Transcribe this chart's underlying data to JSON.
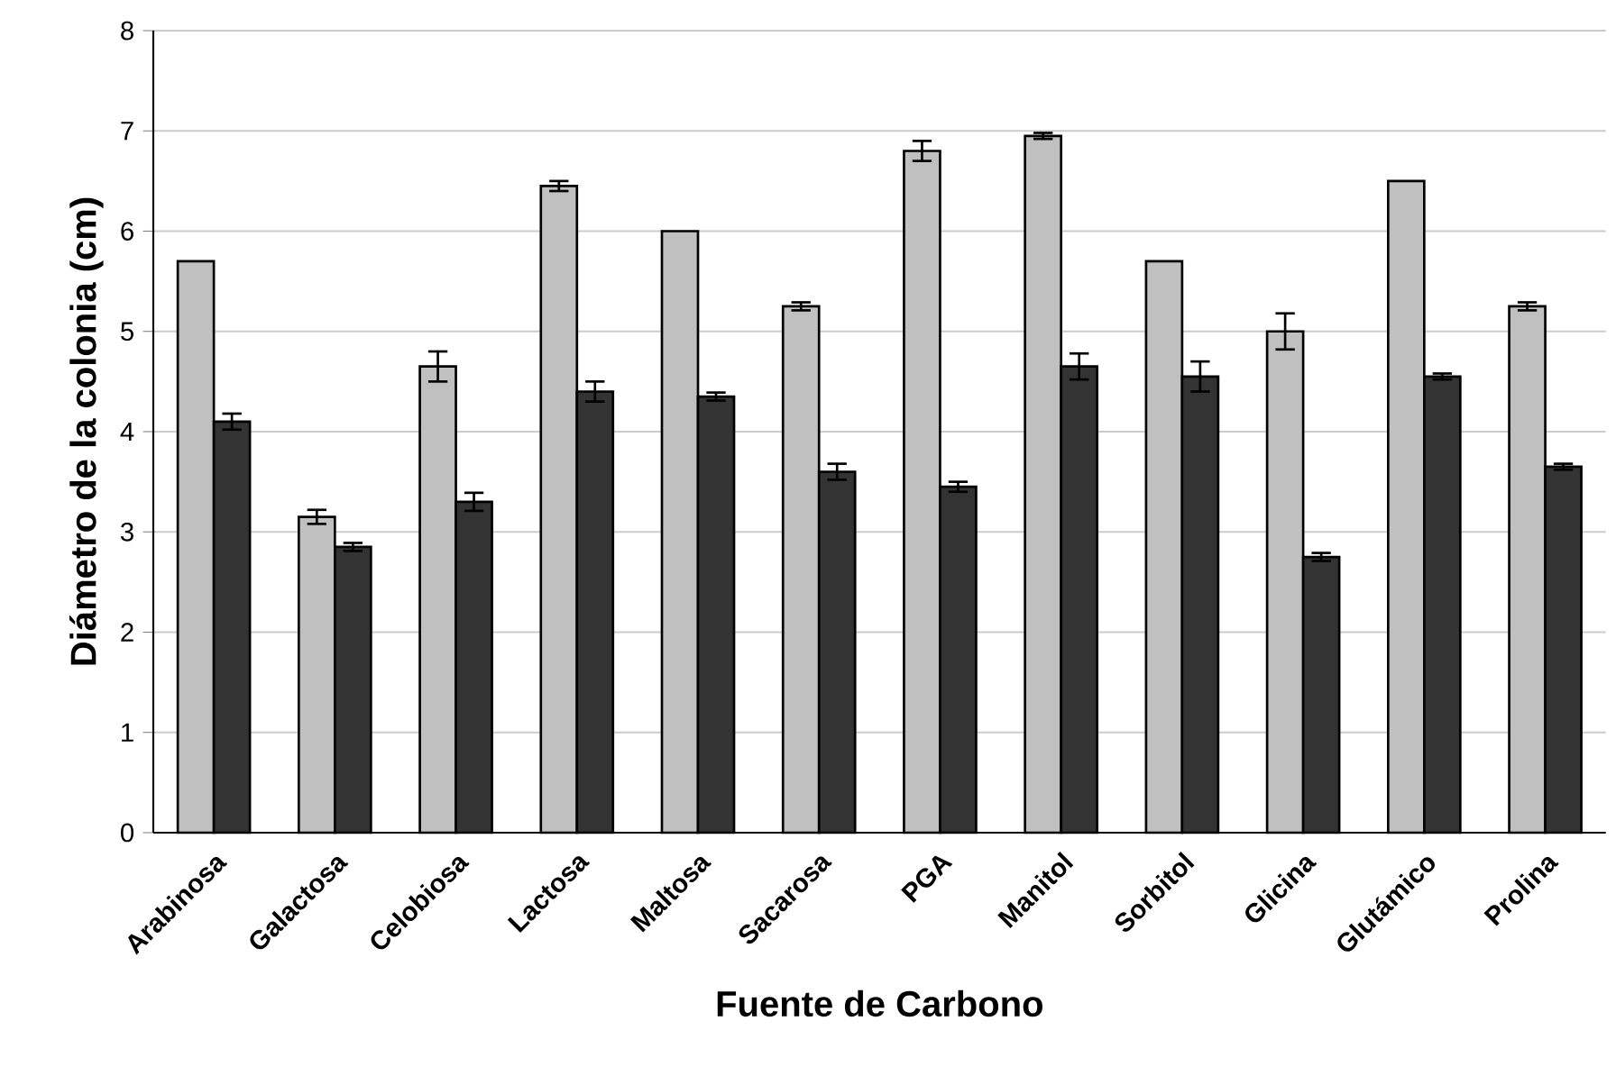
{
  "chart_data": {
    "type": "bar",
    "xlabel": "Fuente de Carbono",
    "ylabel": "Diámetro de la colonia (cm)",
    "categories": [
      "Arabinosa",
      "Galactosa",
      "Celobiosa",
      "Lactosa",
      "Maltosa",
      "Sacarosa",
      "PGA",
      "Manitol",
      "Sorbitol",
      "Glicina",
      "Glutámico",
      "Prolina"
    ],
    "series": [
      {
        "color": "#c0c0c0",
        "values": [
          5.7,
          3.15,
          4.65,
          6.45,
          6.0,
          5.25,
          6.8,
          6.95,
          5.7,
          5.0,
          6.5,
          5.25
        ],
        "errors": [
          null,
          0.07,
          0.15,
          0.05,
          null,
          0.04,
          0.1,
          0.03,
          null,
          0.18,
          null,
          0.04
        ]
      },
      {
        "color": "#333333",
        "values": [
          4.1,
          2.85,
          3.3,
          4.4,
          4.35,
          3.6,
          3.45,
          4.65,
          4.55,
          2.75,
          4.55,
          3.65
        ],
        "errors": [
          0.08,
          0.04,
          0.09,
          0.1,
          0.04,
          0.08,
          0.05,
          0.13,
          0.15,
          0.04,
          0.03,
          0.03
        ]
      }
    ],
    "ylim": [
      0,
      8
    ],
    "yticks": [
      0,
      1,
      2,
      3,
      4,
      5,
      6,
      7,
      8
    ],
    "grid": "y"
  }
}
